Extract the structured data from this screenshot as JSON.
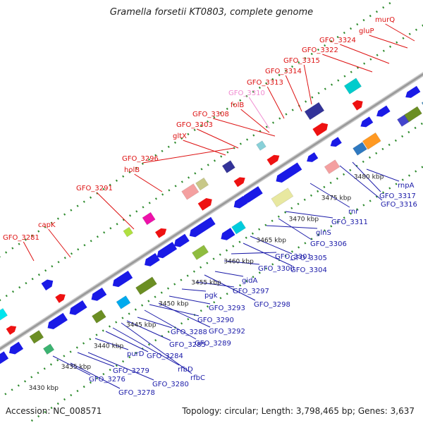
{
  "title": "Gramella forsetii KT0803, complete genome",
  "accession": "Accession: NC_008571",
  "stats": "Topology: circular; Length: 3,798,465 bp; Genes: 3,637",
  "colors": {
    "label_red": "#dd1111",
    "label_blue": "#1a1aa8",
    "label_pink": "#f08ad0",
    "backbone": "#9a9a9a",
    "dots": "#2e8b2e"
  },
  "kbp_ticks": [
    "3430 kbp",
    "3435 kbp",
    "3440 kbp",
    "3445 kbp",
    "3450 kbp",
    "3455 kbp",
    "3460 kbp",
    "3465 kbp",
    "3470 kbp",
    "3475 kbp",
    "3480 kbp"
  ],
  "upper_labels": [
    "GFO_3281",
    "capK",
    "GFO_3291",
    "holB",
    "GFO_3296",
    "gltX",
    "GFO_3303",
    "GFO_3308",
    "folB",
    "GFO_3310",
    "GFO_3313",
    "GFO_3314",
    "GFO_3315",
    "GFO_3322",
    "GFO_3324",
    "gluP",
    "murQ"
  ],
  "lower_labels": [
    "GFO_3276",
    "GFO_3278",
    "GFO_3279",
    "GFO_3280",
    "purD",
    "GFO_3284",
    "rfbD",
    "rfbC",
    "GFO_3285",
    "GFO_3288",
    "GFO_3289",
    "GFO_3290",
    "GFO_3292",
    "GFO_3293",
    "pgk",
    "GFO_3297",
    "GFO_3298",
    "gidA",
    "GFO_3300",
    "GFO_3301",
    "GFO_3304",
    "GFO_3305",
    "glnS",
    "GFO_3306",
    "GFO_3311",
    "rnr",
    "GFO_3316",
    "GFO_3317",
    "rnpA"
  ]
}
